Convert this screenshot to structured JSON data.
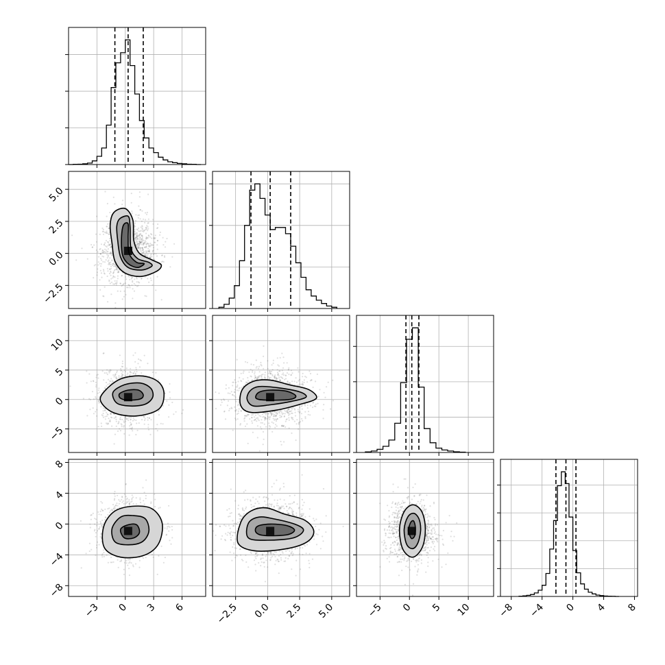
{
  "chart_data": {
    "type": "corner",
    "title": "",
    "parameters": [
      "",
      "",
      "",
      ""
    ],
    "ticks": [
      {
        "values": [
          -3,
          0,
          3,
          6
        ],
        "labels": [
          "−3",
          "0",
          "3",
          "6"
        ]
      },
      {
        "values": [
          -2.5,
          0.0,
          2.5,
          5.0
        ],
        "labels": [
          "−2.5",
          "0.0",
          "2.5",
          "5.0"
        ]
      },
      {
        "values": [
          -5,
          0,
          5,
          10
        ],
        "labels": [
          "−5",
          "0",
          "5",
          "10"
        ]
      },
      {
        "values": [
          -8,
          -4,
          0,
          4,
          8
        ],
        "labels": [
          "−8",
          "−4",
          "0",
          "4",
          "8"
        ]
      }
    ],
    "ranges": [
      [
        -6.0,
        8.5
      ],
      [
        -4.3,
        6.4
      ],
      [
        -9.0,
        14.3
      ],
      [
        -9.4,
        8.4
      ]
    ],
    "quantiles": [
      [
        -1.1,
        0.3,
        1.9
      ],
      [
        -1.3,
        0.2,
        1.8
      ],
      [
        -0.6,
        0.4,
        1.6
      ],
      [
        -2.2,
        -0.9,
        0.4
      ]
    ],
    "centers": [
      [
        0.2,
        0.6
      ],
      [
        0.3,
        0.0
      ],
      [
        0.5,
        0.3
      ],
      [
        -0.9,
        -0.9
      ]
    ],
    "histograms": [
      {
        "bin_edges": [
          -6.0,
          -5.5,
          -5.0,
          -4.5,
          -4.0,
          -3.5,
          -3.0,
          -2.5,
          -2.0,
          -1.5,
          -1.0,
          -0.5,
          0.0,
          0.5,
          1.0,
          1.5,
          2.0,
          2.5,
          3.0,
          3.5,
          4.0,
          4.5,
          5.0,
          5.5,
          6.0,
          6.5,
          7.0,
          7.5,
          8.0
        ],
        "counts": [
          0,
          1,
          2,
          4,
          8,
          20,
          45,
          90,
          215,
          420,
          555,
          610,
          680,
          540,
          385,
          240,
          145,
          90,
          65,
          40,
          25,
          15,
          10,
          6,
          4,
          2,
          1,
          0
        ]
      },
      {
        "bin_edges": [
          -3.8,
          -3.4,
          -3.0,
          -2.6,
          -2.2,
          -1.8,
          -1.4,
          -1.0,
          -0.6,
          -0.2,
          0.2,
          0.6,
          1.0,
          1.4,
          1.8,
          2.2,
          2.6,
          3.0,
          3.4,
          3.8,
          4.2,
          4.6,
          5.0,
          5.4
        ],
        "counts": [
          3,
          10,
          25,
          55,
          115,
          200,
          285,
          300,
          265,
          225,
          190,
          195,
          195,
          180,
          150,
          110,
          75,
          45,
          30,
          20,
          12,
          6,
          3
        ]
      },
      {
        "bin_edges": [
          -7.5,
          -6.5,
          -5.5,
          -4.5,
          -3.5,
          -2.5,
          -1.5,
          -0.5,
          0.5,
          1.5,
          2.5,
          3.5,
          4.5,
          5.5,
          6.5,
          7.5,
          8.5,
          9.5
        ],
        "counts": [
          3,
          8,
          18,
          35,
          70,
          165,
          395,
          640,
          705,
          370,
          135,
          55,
          25,
          14,
          8,
          4,
          2
        ]
      },
      {
        "bin_edges": [
          -7.0,
          -6.5,
          -6.0,
          -5.5,
          -5.0,
          -4.5,
          -4.0,
          -3.5,
          -3.0,
          -2.5,
          -2.0,
          -1.5,
          -1.0,
          -0.5,
          0.0,
          0.5,
          1.0,
          1.5,
          2.0,
          2.5,
          3.0,
          3.5,
          4.0,
          4.5,
          5.0,
          5.5,
          6.0
        ],
        "counts": [
          2,
          4,
          8,
          14,
          25,
          45,
          80,
          165,
          340,
          545,
          795,
          895,
          810,
          570,
          330,
          170,
          90,
          52,
          30,
          18,
          10,
          6,
          3,
          2,
          1,
          0
        ]
      }
    ],
    "scatter_width": [
      [
        2.2,
        1.9
      ],
      [
        2.4,
        2.2
      ],
      [
        3.1,
        2.2
      ],
      [
        2.1,
        2.1
      ]
    ]
  }
}
